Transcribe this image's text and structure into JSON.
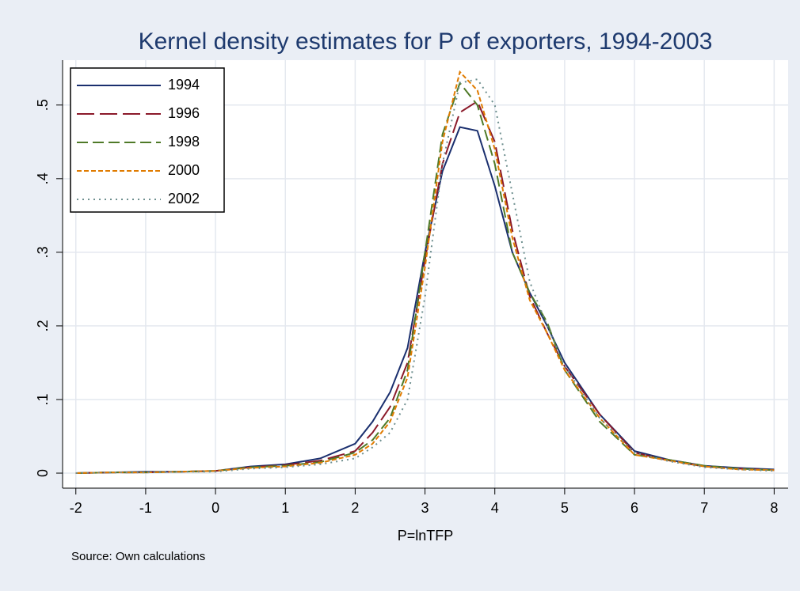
{
  "chart_data": {
    "type": "line",
    "title": "Kernel density estimates for P of exporters, 1994-2003",
    "x_label": "P=lnTFP",
    "note": "Source: Own calculations",
    "x": [
      -2,
      -1.5,
      -1,
      -0.5,
      0,
      0.5,
      1,
      1.5,
      2,
      2.25,
      2.5,
      2.75,
      3,
      3.25,
      3.5,
      3.75,
      4,
      4.25,
      4.5,
      4.75,
      5,
      5.5,
      6,
      6.5,
      7,
      7.5,
      8
    ],
    "series": [
      {
        "name": "1994",
        "color": "#1a2f6e",
        "values": [
          0,
          0.001,
          0.002,
          0.002,
          0.003,
          0.009,
          0.012,
          0.02,
          0.04,
          0.07,
          0.11,
          0.17,
          0.3,
          0.41,
          0.47,
          0.465,
          0.39,
          0.3,
          0.245,
          0.2,
          0.15,
          0.08,
          0.03,
          0.018,
          0.01,
          0.007,
          0.005
        ]
      },
      {
        "name": "1996",
        "color": "#8b1a2a",
        "values": [
          0,
          0.001,
          0.001,
          0.002,
          0.003,
          0.008,
          0.011,
          0.017,
          0.03,
          0.055,
          0.09,
          0.15,
          0.29,
          0.42,
          0.49,
          0.505,
          0.45,
          0.33,
          0.24,
          0.19,
          0.145,
          0.08,
          0.028,
          0.017,
          0.009,
          0.006,
          0.004
        ]
      },
      {
        "name": "1998",
        "color": "#4f7a28",
        "values": [
          0,
          0.001,
          0.001,
          0.002,
          0.003,
          0.008,
          0.01,
          0.015,
          0.028,
          0.045,
          0.075,
          0.14,
          0.3,
          0.46,
          0.53,
          0.5,
          0.42,
          0.3,
          0.245,
          0.205,
          0.14,
          0.07,
          0.025,
          0.018,
          0.01,
          0.006,
          0.004
        ]
      },
      {
        "name": "2000",
        "color": "#e07b00",
        "values": [
          0,
          0.001,
          0.001,
          0.002,
          0.003,
          0.007,
          0.009,
          0.014,
          0.025,
          0.04,
          0.07,
          0.13,
          0.28,
          0.45,
          0.545,
          0.52,
          0.44,
          0.32,
          0.235,
          0.19,
          0.14,
          0.075,
          0.025,
          0.017,
          0.009,
          0.005,
          0.004
        ]
      },
      {
        "name": "2002",
        "color": "#6e8f8f",
        "values": [
          0,
          0.001,
          0.001,
          0.002,
          0.002,
          0.006,
          0.008,
          0.012,
          0.02,
          0.035,
          0.055,
          0.1,
          0.24,
          0.42,
          0.53,
          0.535,
          0.5,
          0.38,
          0.26,
          0.2,
          0.145,
          0.075,
          0.028,
          0.016,
          0.008,
          0.005,
          0.003
        ]
      }
    ],
    "xlim": [
      -2.19,
      8.2
    ],
    "xticks": [
      -2,
      -1,
      0,
      1,
      2,
      3,
      4,
      5,
      6,
      7,
      8
    ],
    "ylim": [
      -0.0204,
      0.561
    ],
    "yticks": [
      0,
      {
        "value": 0.1,
        "label": ".1"
      },
      {
        "value": 0.2,
        "label": ".2"
      },
      {
        "value": 0.3,
        "label": ".3"
      },
      {
        "value": 0.4,
        "label": ".4"
      },
      {
        "value": 0.5,
        "label": ".5"
      }
    ],
    "grid": true
  }
}
